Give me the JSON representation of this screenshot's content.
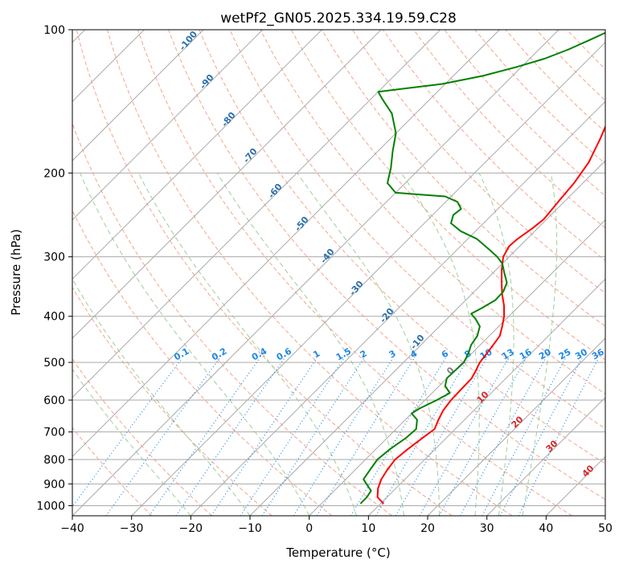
{
  "chart_data": {
    "type": "line",
    "chart_kind": "skew-T log-P diagram",
    "title": "wetPf2_GN05.2025.334.19.59.C28",
    "xlabel": "Temperature (°C)",
    "ylabel": "Pressure (hPa)",
    "xlim": [
      -40,
      50
    ],
    "ylim_pressure": [
      1050,
      100
    ],
    "y_scale": "log",
    "grid": true,
    "x_ticks": [
      -40,
      -30,
      -20,
      -10,
      0,
      10,
      20,
      30,
      40,
      50
    ],
    "y_ticks": [
      100,
      200,
      300,
      400,
      500,
      600,
      700,
      800,
      900,
      1000
    ],
    "series": [
      {
        "key": "temperature",
        "color": "#ff0000",
        "points": [
          {
            "p": 990,
            "t": 10.5
          },
          {
            "p": 960,
            "t": 8.4
          },
          {
            "p": 920,
            "t": 7.0
          },
          {
            "p": 880,
            "t": 6.0
          },
          {
            "p": 840,
            "t": 5.4
          },
          {
            "p": 800,
            "t": 5.0
          },
          {
            "p": 760,
            "t": 5.4
          },
          {
            "p": 720,
            "t": 6.0
          },
          {
            "p": 690,
            "t": 6.5
          },
          {
            "p": 660,
            "t": 5.6
          },
          {
            "p": 630,
            "t": 4.8
          },
          {
            "p": 600,
            "t": 4.4
          },
          {
            "p": 570,
            "t": 4.3
          },
          {
            "p": 540,
            "t": 4.2
          },
          {
            "p": 520,
            "t": 3.6
          },
          {
            "p": 500,
            "t": 2.9
          },
          {
            "p": 470,
            "t": 2.4
          },
          {
            "p": 440,
            "t": 1.8
          },
          {
            "p": 420,
            "t": 0.6
          },
          {
            "p": 400,
            "t": -0.8
          },
          {
            "p": 380,
            "t": -2.6
          },
          {
            "p": 360,
            "t": -4.8
          },
          {
            "p": 340,
            "t": -6.9
          },
          {
            "p": 320,
            "t": -9.0
          },
          {
            "p": 300,
            "t": -11.0
          },
          {
            "p": 285,
            "t": -11.8
          },
          {
            "p": 275,
            "t": -11.6
          },
          {
            "p": 262,
            "t": -10.9
          },
          {
            "p": 250,
            "t": -10.5
          },
          {
            "p": 230,
            "t": -11.0
          },
          {
            "p": 210,
            "t": -11.5
          },
          {
            "p": 190,
            "t": -12.5
          },
          {
            "p": 170,
            "t": -14.5
          },
          {
            "p": 150,
            "t": -17.0
          },
          {
            "p": 140,
            "t": -17.5
          },
          {
            "p": 130,
            "t": -17.2
          },
          {
            "p": 120,
            "t": -17.0
          },
          {
            "p": 110,
            "t": -15.5
          },
          {
            "p": 100,
            "t": -15.0
          }
        ]
      },
      {
        "key": "dewpoint",
        "color": "#008000",
        "points": [
          {
            "p": 990,
            "t": 6.6
          },
          {
            "p": 960,
            "t": 6.6
          },
          {
            "p": 930,
            "t": 6.2
          },
          {
            "p": 905,
            "t": 4.6
          },
          {
            "p": 880,
            "t": 3.0
          },
          {
            "p": 840,
            "t": 2.5
          },
          {
            "p": 800,
            "t": 2.0
          },
          {
            "p": 760,
            "t": 2.4
          },
          {
            "p": 720,
            "t": 3.2
          },
          {
            "p": 690,
            "t": 3.4
          },
          {
            "p": 660,
            "t": 2.0
          },
          {
            "p": 640,
            "t": 0.0
          },
          {
            "p": 625,
            "t": 0.5
          },
          {
            "p": 600,
            "t": 2.0
          },
          {
            "p": 580,
            "t": 3.0
          },
          {
            "p": 560,
            "t": 1.0
          },
          {
            "p": 540,
            "t": 0.0
          },
          {
            "p": 520,
            "t": 0.1
          },
          {
            "p": 500,
            "t": 0.2
          },
          {
            "p": 480,
            "t": -0.5
          },
          {
            "p": 460,
            "t": -1.5
          },
          {
            "p": 440,
            "t": -2.0
          },
          {
            "p": 420,
            "t": -3.2
          },
          {
            "p": 405,
            "t": -5.2
          },
          {
            "p": 395,
            "t": -6.8
          },
          {
            "p": 385,
            "t": -6.0
          },
          {
            "p": 370,
            "t": -5.0
          },
          {
            "p": 355,
            "t": -5.1
          },
          {
            "p": 340,
            "t": -6.0
          },
          {
            "p": 325,
            "t": -8.0
          },
          {
            "p": 310,
            "t": -10.0
          },
          {
            "p": 300,
            "t": -12.0
          },
          {
            "p": 290,
            "t": -14.5
          },
          {
            "p": 275,
            "t": -18.5
          },
          {
            "p": 265,
            "t": -22.5
          },
          {
            "p": 255,
            "t": -25.5
          },
          {
            "p": 245,
            "t": -26.5
          },
          {
            "p": 238,
            "t": -26.2
          },
          {
            "p": 230,
            "t": -28.0
          },
          {
            "p": 224,
            "t": -31.0
          },
          {
            "p": 220,
            "t": -40.0
          },
          {
            "p": 210,
            "t": -43.0
          },
          {
            "p": 195,
            "t": -45.0
          },
          {
            "p": 180,
            "t": -47.5
          },
          {
            "p": 165,
            "t": -50.0
          },
          {
            "p": 150,
            "t": -54.0
          },
          {
            "p": 140,
            "t": -58.0
          },
          {
            "p": 135,
            "t": -60.0
          },
          {
            "p": 130,
            "t": -50.5
          },
          {
            "p": 125,
            "t": -45.0
          },
          {
            "p": 120,
            "t": -41.0
          },
          {
            "p": 115,
            "t": -37.5
          },
          {
            "p": 110,
            "t": -35.0
          },
          {
            "p": 105,
            "t": -33.0
          },
          {
            "p": 100,
            "t": -31.0
          }
        ]
      }
    ],
    "dry_adiabat_labels": [
      "-100",
      "-90",
      "-80",
      "-70",
      "-60",
      "-50",
      "-40",
      "-30",
      "-20",
      "-10"
    ],
    "moist_adiabat_labels": [
      "0",
      "10",
      "20",
      "30",
      "40"
    ],
    "mixing_ratio_labels": [
      "0.1",
      "0.2",
      "0.4",
      "0.6",
      "1",
      "1.5",
      "2",
      "3",
      "4",
      "6",
      "8",
      "10",
      "13",
      "16",
      "20",
      "25",
      "30",
      "36"
    ],
    "colors": {
      "isotherm_grid": "#aaaaaa",
      "dry_adiabat": "#f6a58b",
      "moist_adiabat": "#9ccf9c",
      "mixing_ratio": "#1e88e5",
      "dry_label": "#2c6fa8",
      "moist_label": "#d62728",
      "mixing_label": "#1e88e5",
      "freezing_label": "#808080"
    }
  }
}
